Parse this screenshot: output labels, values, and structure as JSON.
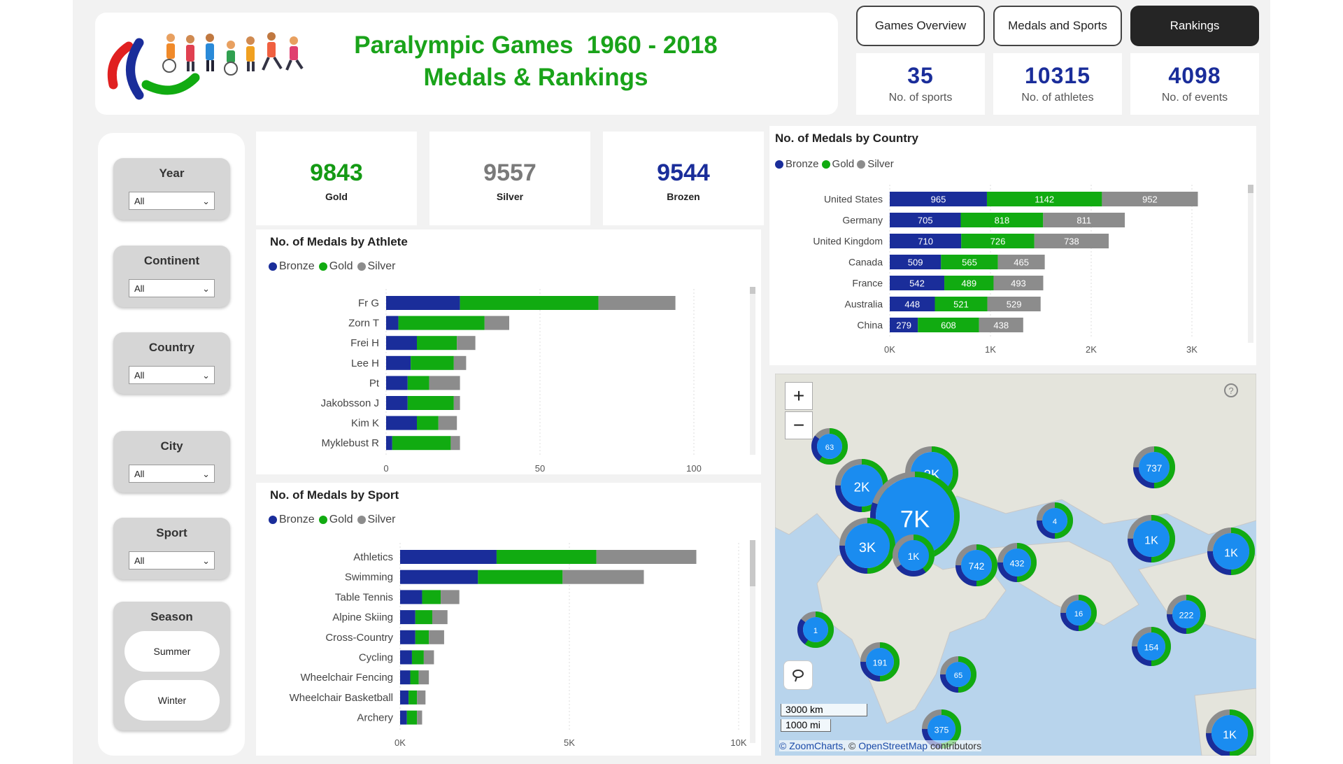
{
  "header": {
    "title_line1": "Paralympic Games  1960 - 2018",
    "title_line2": "Medals & Rankings"
  },
  "nav": [
    {
      "label": "Games Overview",
      "active": false
    },
    {
      "label": "Medals and Sports",
      "active": false
    },
    {
      "label": "Rankings",
      "active": true
    }
  ],
  "stats": [
    {
      "value": "35",
      "label": "No. of sports"
    },
    {
      "value": "10315",
      "label": "No. of athletes"
    },
    {
      "value": "4098",
      "label": "No. of events"
    }
  ],
  "filters": [
    {
      "title": "Year",
      "value": "All"
    },
    {
      "title": "Continent",
      "value": "All"
    },
    {
      "title": "Country",
      "value": "All"
    },
    {
      "title": "City",
      "value": "All"
    },
    {
      "title": "Sport",
      "value": "All"
    }
  ],
  "season": {
    "title": "Season",
    "options": [
      "Summer",
      "Winter"
    ]
  },
  "kpis": [
    {
      "value": "9843",
      "label": "Gold",
      "color": "#149a14"
    },
    {
      "value": "9557",
      "label": "Silver",
      "color": "#7a7a7a"
    },
    {
      "value": "9544",
      "label": "Brozen",
      "color": "#1a2d9a"
    }
  ],
  "colors": {
    "bronze": "#1a2d9a",
    "gold": "#11ab11",
    "silver": "#8c8c8c"
  },
  "legend": [
    "Bronze",
    "Gold",
    "Silver"
  ],
  "chart_data": [
    {
      "type": "bar",
      "orientation": "horizontal",
      "stacked": true,
      "title": "No. of Medals by Athlete",
      "categories": [
        "Fr G",
        "Zorn T",
        "Frei H",
        "Lee H",
        "Pt",
        "Jakobsson J",
        "Kim K",
        "Myklebust R"
      ],
      "series": [
        {
          "name": "Bronze",
          "values": [
            24,
            4,
            10,
            8,
            7,
            7,
            10,
            2
          ]
        },
        {
          "name": "Gold",
          "values": [
            45,
            28,
            13,
            14,
            7,
            15,
            7,
            19
          ]
        },
        {
          "name": "Silver",
          "values": [
            25,
            8,
            6,
            4,
            10,
            2,
            6,
            3
          ]
        }
      ],
      "xticks": [
        "0",
        "50",
        "100"
      ],
      "xlim": [
        0,
        108
      ]
    },
    {
      "type": "bar",
      "orientation": "horizontal",
      "stacked": true,
      "title": "No. of Medals by Sport",
      "categories": [
        "Athletics",
        "Swimming",
        "Table Tennis",
        "Alpine Skiing",
        "Cross-Country",
        "Cycling",
        "Wheelchair Fencing",
        "Wheelchair Basketball",
        "Archery"
      ],
      "series": [
        {
          "name": "Bronze",
          "values": [
            2850,
            2300,
            650,
            450,
            450,
            350,
            300,
            250,
            200
          ]
        },
        {
          "name": "Gold",
          "values": [
            2950,
            2500,
            550,
            500,
            400,
            350,
            250,
            250,
            300
          ]
        },
        {
          "name": "Silver",
          "values": [
            2950,
            2400,
            550,
            450,
            450,
            300,
            300,
            250,
            150
          ]
        }
      ],
      "xticks": [
        "0K",
        "5K",
        "10K"
      ],
      "xlim": [
        0,
        10000
      ]
    },
    {
      "type": "bar",
      "orientation": "horizontal",
      "stacked": true,
      "title": "No. of Medals by Country",
      "categories": [
        "United States",
        "Germany",
        "United Kingdom",
        "Canada",
        "France",
        "Australia",
        "China"
      ],
      "series": [
        {
          "name": "Bronze",
          "values": [
            965,
            705,
            710,
            509,
            542,
            448,
            279
          ]
        },
        {
          "name": "Gold",
          "values": [
            1142,
            818,
            726,
            565,
            489,
            521,
            608
          ]
        },
        {
          "name": "Silver",
          "values": [
            952,
            811,
            738,
            465,
            493,
            529,
            438
          ]
        }
      ],
      "xticks": [
        "0K",
        "1K",
        "2K",
        "3K"
      ],
      "xlim": [
        0,
        3000
      ]
    }
  ],
  "map": {
    "zoom_in": "+",
    "zoom_out": "−",
    "scale_km": "3000 km",
    "scale_mi": "1000 mi",
    "attribution_zc": "© ZoomCharts",
    "attribution_sep": ", © ",
    "attribution_osm": "OpenStreetMap",
    "attribution_tail": " contributors",
    "clusters": [
      {
        "label": "63"
      },
      {
        "label": "2K"
      },
      {
        "label": "2K"
      },
      {
        "label": "7K"
      },
      {
        "label": "3K"
      },
      {
        "label": "1K"
      },
      {
        "label": "4"
      },
      {
        "label": "737"
      },
      {
        "label": "1K"
      },
      {
        "label": "1K"
      },
      {
        "label": "742"
      },
      {
        "label": "432"
      },
      {
        "label": "16"
      },
      {
        "label": "222"
      },
      {
        "label": "1"
      },
      {
        "label": "191"
      },
      {
        "label": "65"
      },
      {
        "label": "154"
      },
      {
        "label": "375"
      },
      {
        "label": "1K"
      }
    ]
  }
}
